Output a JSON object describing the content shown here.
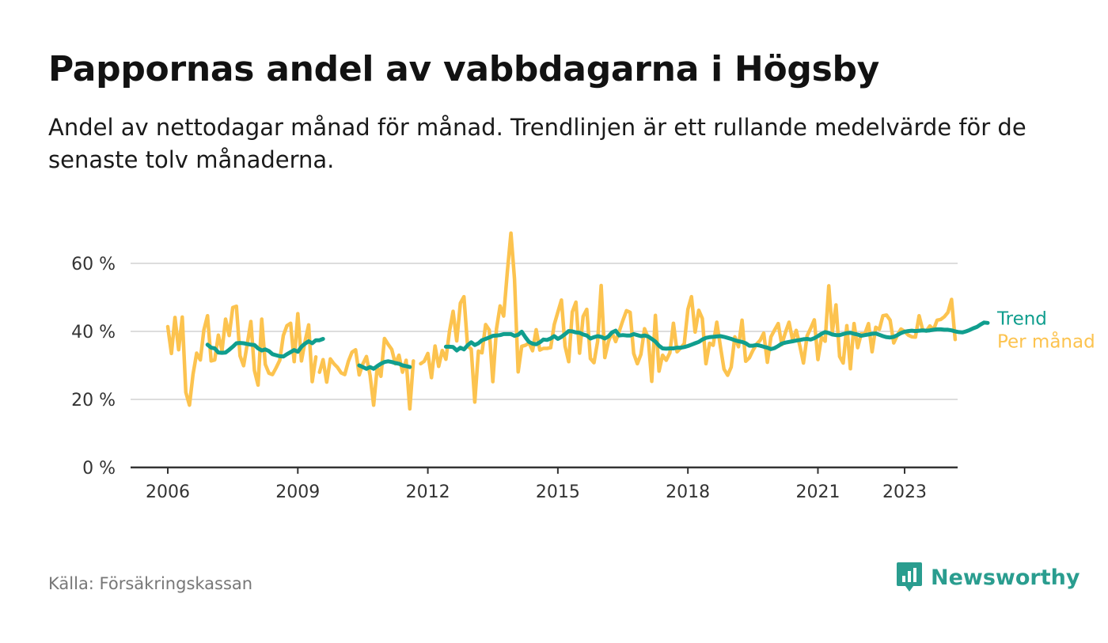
{
  "header": {
    "title": "Pappornas andel av vabbdagarna i Högsby",
    "subtitle": "Andel av nettodagar månad för månad. Trendlinjen är ett rullande medelvärde för de senaste tolv månaderna."
  },
  "footer": {
    "source": "Källa: Försäkringskassan",
    "brand": "Newsworthy",
    "brand_icon": "bar-chart-speech-bubble-icon"
  },
  "colors": {
    "monthly": "#fcc34f",
    "trend": "#109e8e",
    "grid": "#dddddd",
    "axis": "#333333",
    "brand": "#2a9d8f"
  },
  "chart_data": {
    "type": "line",
    "title": "Pappornas andel av vabbdagarna i Högsby",
    "subtitle": "Andel av nettodagar månad för månad. Trendlinjen är ett rullande medelvärde för de senaste tolv månaderna.",
    "xlabel": "",
    "ylabel": "",
    "x_ticks": [
      "2006",
      "2009",
      "2012",
      "2015",
      "2018",
      "2021",
      "2023"
    ],
    "y_ticks": [
      "0 %",
      "20 %",
      "40 %",
      "60 %"
    ],
    "ylim": [
      0,
      70
    ],
    "xlim": [
      "2005-07",
      "2024-11"
    ],
    "grid": true,
    "legend": "end-of-line labels",
    "series": [
      {
        "name": "Trend",
        "color": "#109e8e",
        "segments": [
          {
            "start": "2006-12",
            "values": [
              36.1,
              35.2,
              35.0,
              33.8,
              33.7,
              33.8,
              34.6,
              35.5,
              36.5,
              36.6,
              36.5,
              36.3,
              36.1,
              36.0,
              35.0,
              34.4,
              34.7,
              34.2,
              33.3,
              33.0,
              32.7,
              32.6,
              33.3,
              33.9,
              34.5,
              34.0,
              35.5,
              36.4,
              37.1,
              36.5,
              37.4,
              37.4,
              37.8
            ]
          },
          {
            "start": "2010-06",
            "values": [
              30.0,
              29.5,
              29.0,
              29.5,
              29.0,
              29.8,
              30.5,
              31.0,
              31.2,
              31.0,
              30.7,
              30.5,
              30.0,
              29.8,
              29.5
            ]
          },
          {
            "start": "2012-06",
            "values": [
              35.5,
              35.5,
              35.4,
              34.4,
              35.2,
              34.7,
              35.9,
              36.8,
              36.0,
              36.5,
              37.4,
              37.8,
              38.2,
              38.7,
              38.8,
              38.9,
              39.2,
              39.2,
              39.2,
              38.7,
              39.0,
              39.9,
              38.3,
              36.9,
              36.4,
              36.2,
              36.8,
              37.6,
              37.5,
              37.9,
              38.6,
              37.8,
              38.4,
              39.2,
              40.1,
              40.0,
              39.7,
              39.6,
              39.1,
              38.8,
              37.9,
              38.3,
              38.6,
              38.4,
              37.9,
              38.5,
              39.7,
              40.2,
              38.8,
              38.9,
              38.8,
              38.8,
              39.2,
              38.9,
              38.6,
              38.8,
              38.5,
              37.8,
              37.0,
              35.8,
              35.0,
              34.9,
              35.0,
              35.0,
              35.2,
              35.2,
              35.4,
              35.7,
              36.1,
              36.5,
              36.9,
              37.6,
              38.1,
              38.3,
              38.4,
              38.5,
              38.6,
              38.4,
              38.1,
              37.8,
              37.4,
              37.1,
              36.9,
              36.5,
              35.8,
              35.8,
              36.0,
              35.8,
              35.5,
              35.2,
              34.8,
              35.1,
              35.7,
              36.4,
              36.7,
              36.9,
              37.1,
              37.3,
              37.5,
              37.7,
              37.8,
              37.6,
              38.0,
              38.6,
              39.3,
              39.8,
              39.5,
              39.1,
              38.9,
              38.9,
              39.2,
              39.5,
              39.6,
              39.3,
              39.1,
              38.7,
              38.9,
              39.1,
              39.3,
              39.4,
              39.0,
              38.6,
              38.3,
              38.2,
              38.4,
              38.9,
              39.5,
              39.9,
              40.1,
              40.2,
              40.1,
              40.2,
              40.3,
              40.2,
              40.3,
              40.5,
              40.6,
              40.6,
              40.5,
              40.5,
              40.3,
              40.0,
              39.8,
              39.7,
              40.0,
              40.4,
              40.9,
              41.3,
              42.0,
              42.6,
              42.5
            ]
          }
        ]
      },
      {
        "name": "Per månad",
        "color": "#fcc34f",
        "segments": [
          {
            "start": "2006-01",
            "values": [
              41.4,
              33.5,
              44.1,
              34.6,
              44.2,
              22.1,
              18.3,
              27.4,
              33.6,
              31.6,
              40.4,
              44.6,
              31.3,
              31.6,
              38.9,
              34.3,
              43.6,
              38.8,
              47.0,
              47.4,
              32.8,
              29.9,
              36.2,
              42.9,
              28.5,
              24.2,
              43.6,
              30.3,
              27.7,
              27.3,
              29.3,
              31.5,
              38.8,
              41.7,
              42.4,
              31.1,
              45.2,
              31.3,
              37.0,
              41.9,
              25.2,
              32.5
            ]
          },
          {
            "start": "2009-07",
            "values": [
              28.0,
              31.7,
              25.1,
              31.9,
              30.5,
              29.4,
              27.8,
              27.3,
              31.2,
              33.9,
              34.6,
              27.2,
              30.4,
              32.6,
              27.1,
              18.3,
              29.6,
              26.8,
              37.9,
              36.2,
              34.7,
              30.5,
              33.0,
              28.0,
              31.5,
              17.2,
              31.3
            ]
          },
          {
            "start": "2011-11",
            "values": [
              30.5,
              31.2,
              33.5,
              26.4,
              35.7,
              29.7,
              34.4,
              31.8,
              40.1,
              45.9,
              37.2,
              48.3,
              50.2,
              35.7,
              34.8,
              19.2,
              34.2,
              33.7,
              42.0,
              40.4,
              25.2,
              40.7,
              47.5,
              44.5,
              57.4,
              68.9,
              55.4,
              28.1,
              35.6,
              35.9,
              36.6,
              34.3,
              40.5,
              34.5,
              35.0,
              35.0,
              35.2,
              42.0,
              45.7,
              49.2,
              35.6,
              31.1,
              45.7,
              48.6,
              33.6,
              44.4,
              46.5,
              32.0,
              30.8,
              37.0,
              53.5,
              32.3,
              37.0,
              39.7,
              37.0,
              40.1,
              43.2,
              46.1,
              45.6,
              33.5,
              30.5,
              33.2,
              40.8,
              38.1,
              25.3,
              44.7,
              28.3,
              33.0,
              31.5,
              33.7,
              42.4,
              34.0,
              35.1,
              36.4,
              46.5,
              50.2,
              39.8,
              46.2,
              43.8,
              30.5,
              36.5,
              35.9,
              42.7,
              35.5,
              28.9,
              27.1,
              29.5,
              38.4,
              35.5,
              43.3,
              31.2,
              32.2,
              34.4,
              36.2,
              37.4,
              39.5,
              30.9,
              38.4,
              40.4,
              42.3,
              36.1,
              39.7,
              42.7,
              37.4,
              40.3,
              35.7,
              30.7,
              38.7,
              40.9,
              43.4,
              31.7,
              38.3,
              37.1,
              53.4,
              39.8,
              47.8,
              32.6,
              30.7,
              41.7,
              29.0,
              42.3,
              35.2,
              39.3,
              39.3,
              42.3,
              34.0,
              41.2,
              40.6,
              44.6,
              44.8,
              43.3,
              36.6,
              38.9,
              40.7,
              40.0,
              38.9,
              38.4,
              38.3,
              44.6,
              40.5,
              40.1,
              41.6,
              40.5,
              43.3,
              43.5,
              44.3,
              45.6,
              49.4,
              37.6
            ]
          }
        ]
      }
    ]
  }
}
